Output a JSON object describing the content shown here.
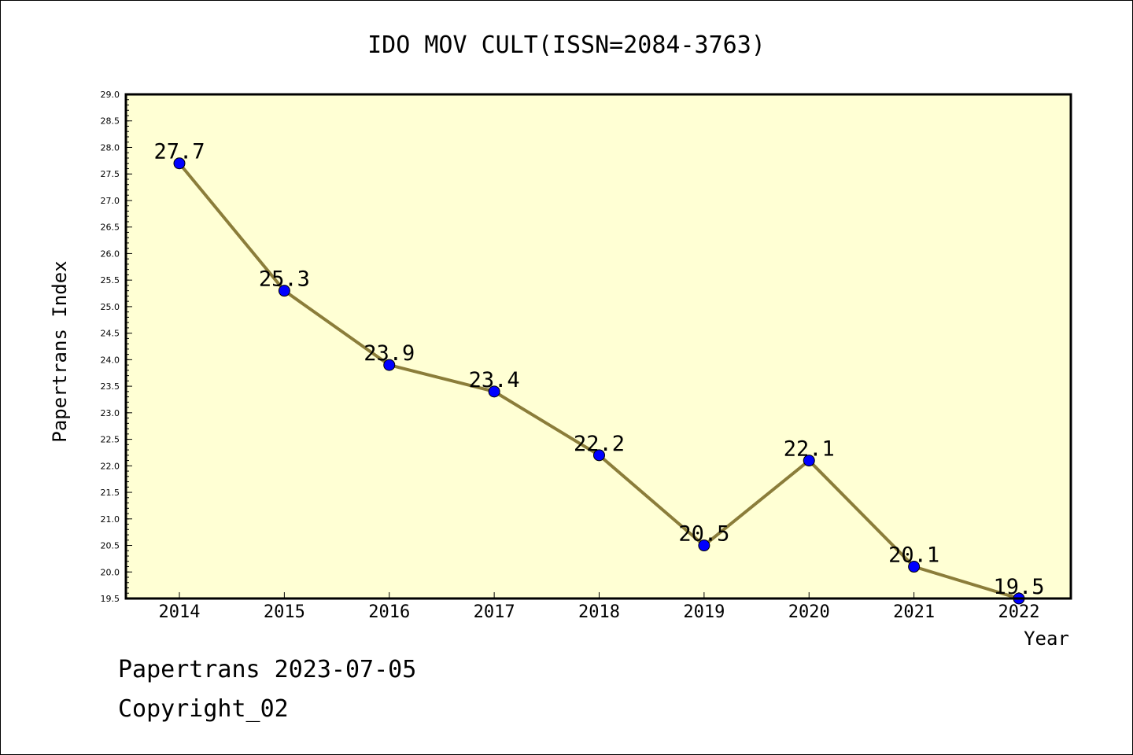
{
  "chart_data": {
    "type": "line",
    "title": "IDO MOV CULT(ISSN=2084-3763)",
    "xlabel": "Year",
    "ylabel": "Papertrans Index",
    "categories": [
      "2014",
      "2015",
      "2016",
      "2017",
      "2018",
      "2019",
      "2020",
      "2021",
      "2022"
    ],
    "series": [
      {
        "values": [
          27.7,
          25.3,
          23.9,
          23.4,
          22.2,
          20.5,
          22.1,
          20.1,
          19.5
        ]
      }
    ],
    "data_labels": [
      "27.7",
      "25.3",
      "23.9",
      "23.4",
      "22.2",
      "20.5",
      "22.1",
      "20.1",
      "19.5"
    ],
    "ylim": [
      19.5,
      29.0
    ],
    "ytick_step": 0.5,
    "yticks": [
      "19.5",
      "20.0",
      "20.5",
      "21.0",
      "21.5",
      "22.0",
      "22.5",
      "23.0",
      "23.5",
      "24.0",
      "24.5",
      "25.0",
      "25.5",
      "26.0",
      "26.5",
      "27.0",
      "27.5",
      "28.0",
      "28.5",
      "29.0"
    ],
    "grid": false,
    "legend": "none",
    "colors": {
      "plot_background": "#ffffd4",
      "line": "#8b7d3a",
      "marker": "#0000ff"
    }
  },
  "footer": {
    "line1": "Papertrans 2023-07-05",
    "line2": "Copyright_02"
  }
}
